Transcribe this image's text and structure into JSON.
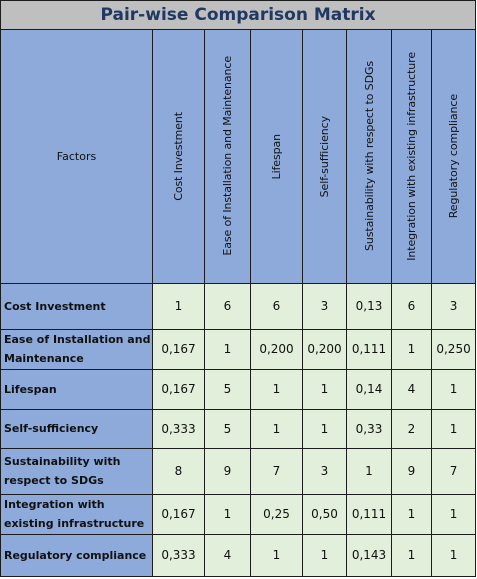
{
  "title": "Pair-wise Comparison Matrix",
  "header": {
    "factors_label": "Factors",
    "columns": [
      "Cost Investment",
      "Ease of Installation and Maintenance",
      "Lifespan",
      "Self-sufficiency",
      "Sustainability with respect to SDGs",
      "Integration with existing infrastructure",
      "Regulatory compliance"
    ]
  },
  "rows": [
    {
      "label": "Cost Investment",
      "values": [
        "1",
        "6",
        "6",
        "3",
        "0,13",
        "6",
        "3"
      ]
    },
    {
      "label": "Ease of Installation and Maintenance",
      "values": [
        "0,167",
        "1",
        "0,200",
        "0,200",
        "0,111",
        "1",
        "0,250"
      ]
    },
    {
      "label": "Lifespan",
      "values": [
        "0,167",
        "5",
        "1",
        "1",
        "0,14",
        "4",
        "1"
      ]
    },
    {
      "label": "Self-sufficiency",
      "values": [
        "0,333",
        "5",
        "1",
        "1",
        "0,33",
        "2",
        "1"
      ]
    },
    {
      "label": "Sustainability with respect to SDGs",
      "values": [
        "8",
        "9",
        "7",
        "3",
        "1",
        "9",
        "7"
      ]
    },
    {
      "label": "Integration with existing infrastructure",
      "values": [
        "0,167",
        "1",
        "0,25",
        "0,50",
        "0,111",
        "1",
        "1"
      ]
    },
    {
      "label": "Regulatory compliance",
      "values": [
        "0,333",
        "4",
        "1",
        "1",
        "0,143",
        "1",
        "1"
      ]
    }
  ],
  "colors": {
    "title_bg": "#bfbfbf",
    "title_text": "#1f3864",
    "header_bg": "#8eaadb",
    "value_bg": "#e2efda",
    "grid": "#1c1c1c"
  }
}
